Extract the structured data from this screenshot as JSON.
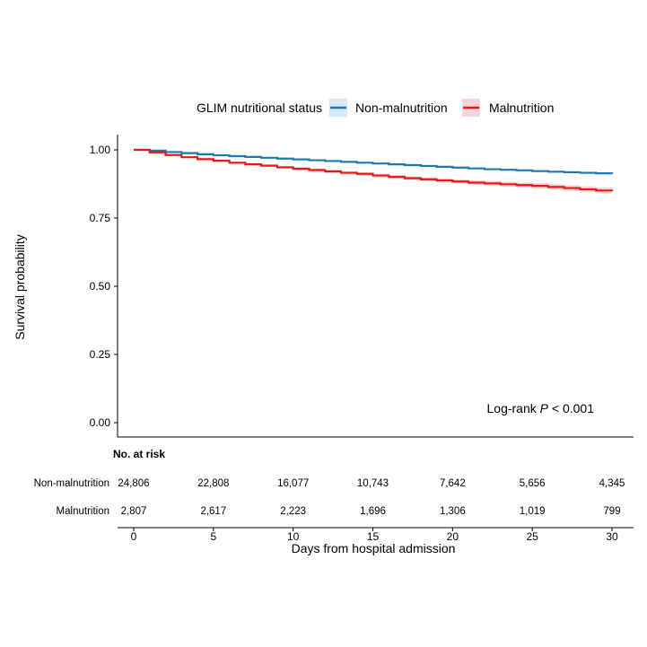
{
  "chart_data": {
    "type": "line",
    "xlabel": "Days from hospital admission",
    "ylabel": "Survival probability",
    "xlim": [
      0,
      30
    ],
    "ylim": [
      0,
      1
    ],
    "x_ticks": [
      "0",
      "5",
      "10",
      "15",
      "20",
      "25",
      "30"
    ],
    "y_ticks": [
      "0.00",
      "0.25",
      "0.50",
      "0.75",
      "1.00"
    ],
    "grid": false,
    "legend": {
      "title": "GLIM nutritional status",
      "position": "top",
      "entries": [
        "Non-malnutrition",
        "Malnutrition"
      ]
    },
    "annotation": {
      "prefix": "Log-rank ",
      "italic": "P",
      "suffix": " < 0.001"
    },
    "series": [
      {
        "name": "Non-malnutrition",
        "color": "#1f77b4",
        "ci_color": "#c6dbef",
        "x": [
          0,
          1,
          2,
          3,
          4,
          5,
          6,
          7,
          8,
          9,
          10,
          11,
          12,
          13,
          14,
          15,
          16,
          17,
          18,
          19,
          20,
          21,
          22,
          23,
          24,
          25,
          26,
          27,
          28,
          29,
          30
        ],
        "y": [
          1.0,
          0.997,
          0.992,
          0.988,
          0.984,
          0.98,
          0.977,
          0.974,
          0.971,
          0.968,
          0.965,
          0.962,
          0.959,
          0.956,
          0.953,
          0.95,
          0.947,
          0.944,
          0.941,
          0.938,
          0.935,
          0.932,
          0.929,
          0.927,
          0.925,
          0.922,
          0.92,
          0.918,
          0.916,
          0.914,
          0.912
        ],
        "ci_halfwidth": [
          0,
          0.001,
          0.001,
          0.001,
          0.001,
          0.001,
          0.001,
          0.001,
          0.001,
          0.002,
          0.002,
          0.002,
          0.002,
          0.002,
          0.002,
          0.002,
          0.002,
          0.002,
          0.002,
          0.003,
          0.003,
          0.003,
          0.003,
          0.003,
          0.003,
          0.003,
          0.003,
          0.003,
          0.004,
          0.004,
          0.004
        ]
      },
      {
        "name": "Malnutrition",
        "color": "#e31a1c",
        "ci_color": "#f4c8c8",
        "x": [
          0,
          1,
          2,
          3,
          4,
          5,
          6,
          7,
          8,
          9,
          10,
          11,
          12,
          13,
          14,
          15,
          16,
          17,
          18,
          19,
          20,
          21,
          22,
          23,
          24,
          25,
          26,
          27,
          28,
          29,
          30
        ],
        "y": [
          1.0,
          0.991,
          0.981,
          0.973,
          0.966,
          0.96,
          0.953,
          0.947,
          0.942,
          0.936,
          0.931,
          0.926,
          0.921,
          0.916,
          0.912,
          0.906,
          0.901,
          0.896,
          0.892,
          0.888,
          0.884,
          0.88,
          0.877,
          0.874,
          0.871,
          0.868,
          0.864,
          0.86,
          0.855,
          0.851,
          0.848
        ],
        "ci_halfwidth": [
          0,
          0.002,
          0.003,
          0.003,
          0.004,
          0.004,
          0.004,
          0.005,
          0.005,
          0.005,
          0.005,
          0.006,
          0.006,
          0.006,
          0.006,
          0.007,
          0.007,
          0.007,
          0.007,
          0.008,
          0.008,
          0.008,
          0.009,
          0.009,
          0.009,
          0.01,
          0.01,
          0.01,
          0.011,
          0.011,
          0.012
        ]
      }
    ],
    "risk_table": {
      "title": "No. at risk",
      "rows": [
        {
          "name": "Non-malnutrition",
          "color": "#1f77b4",
          "values": [
            "24,806",
            "22,808",
            "16,077",
            "10,743",
            "7,642",
            "5,656",
            "4,345"
          ]
        },
        {
          "name": "Malnutrition",
          "color": "#e31a1c",
          "values": [
            "2,807",
            "2,617",
            "2,223",
            "1,696",
            "1,306",
            "1,019",
            "799"
          ]
        }
      ]
    }
  }
}
